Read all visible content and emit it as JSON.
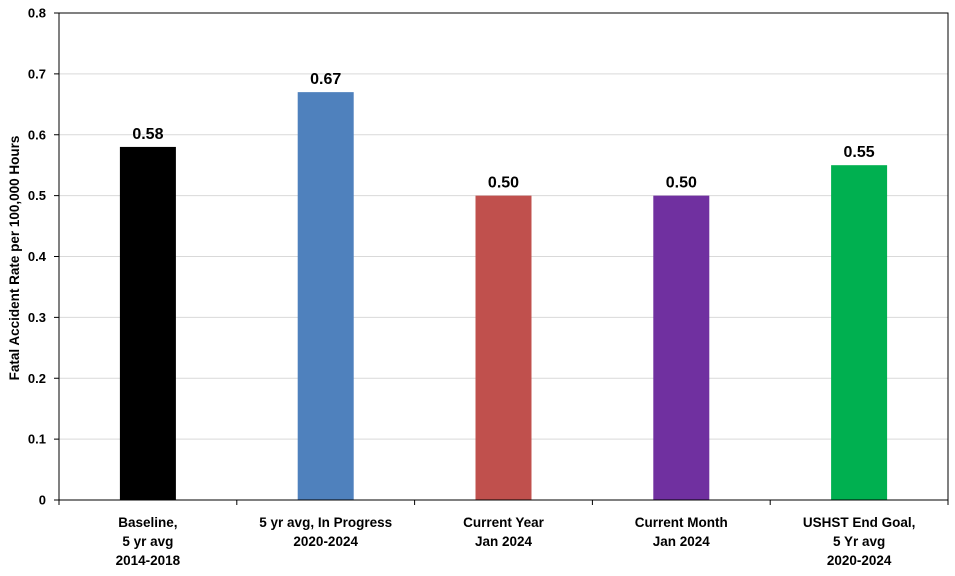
{
  "chart_data": {
    "type": "bar",
    "title": "",
    "ylabel": "Fatal Accident Rate per 100,000 Hours",
    "xlabel": "",
    "ylim": [
      0,
      0.8
    ],
    "yticks": [
      "0",
      "0.1",
      "0.2",
      "0.3",
      "0.4",
      "0.5",
      "0.6",
      "0.7",
      "0.8"
    ],
    "grid": true,
    "categories": [
      [
        "Baseline,",
        "5 yr avg",
        "2014-2018"
      ],
      [
        "5 yr avg, In Progress",
        "2020-2024"
      ],
      [
        "Current Year",
        "Jan 2024"
      ],
      [
        "Current Month",
        "Jan 2024"
      ],
      [
        "USHST End Goal,",
        "5 Yr avg",
        "2020-2024"
      ]
    ],
    "values": [
      0.58,
      0.67,
      0.5,
      0.5,
      0.55
    ],
    "value_labels": [
      "0.58",
      "0.67",
      "0.50",
      "0.50",
      "0.55"
    ],
    "colors": [
      "#000000",
      "#4f81bd",
      "#c0504d",
      "#7030a0",
      "#00b050"
    ]
  }
}
